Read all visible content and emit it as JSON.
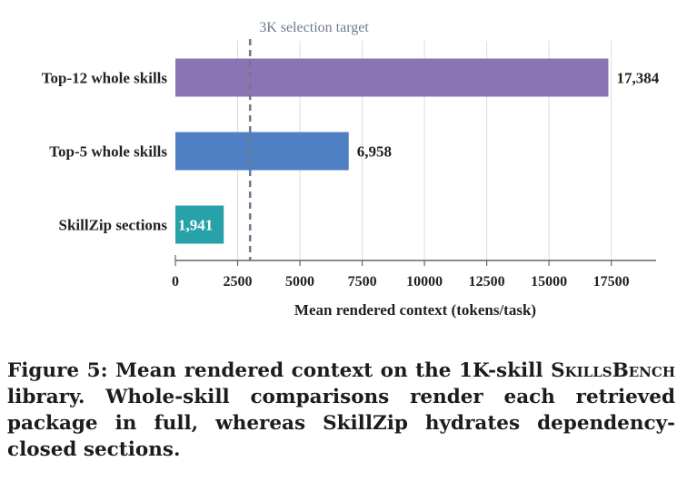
{
  "chart_data": {
    "type": "bar",
    "orientation": "horizontal",
    "categories": [
      "Top-12 whole skills",
      "Top-5 whole skills",
      "SkillZip sections"
    ],
    "values": [
      17384,
      6958,
      1941
    ],
    "value_labels": [
      "17,384",
      "6,958",
      "1,941"
    ],
    "colors": [
      "#8b74b3",
      "#5080c4",
      "#26a2a8"
    ],
    "xlabel": "Mean rendered context (tokens/task)",
    "xlim": [
      0,
      19300
    ],
    "xticks": [
      0,
      2500,
      5000,
      7500,
      10000,
      12500,
      15000,
      17500
    ],
    "grid": "vertical",
    "reference_line": {
      "x": 3000,
      "label": "3K selection target",
      "color": "#6f7c8c"
    }
  },
  "caption": {
    "lead": "Figure 5: Mean rendered context on the 1K-skill ",
    "smallcaps": "SkillsBench",
    "rest": " library. Whole-skill comparisons render each retrieved package in full, whereas SkillZip hydrates dependency-closed sections."
  }
}
